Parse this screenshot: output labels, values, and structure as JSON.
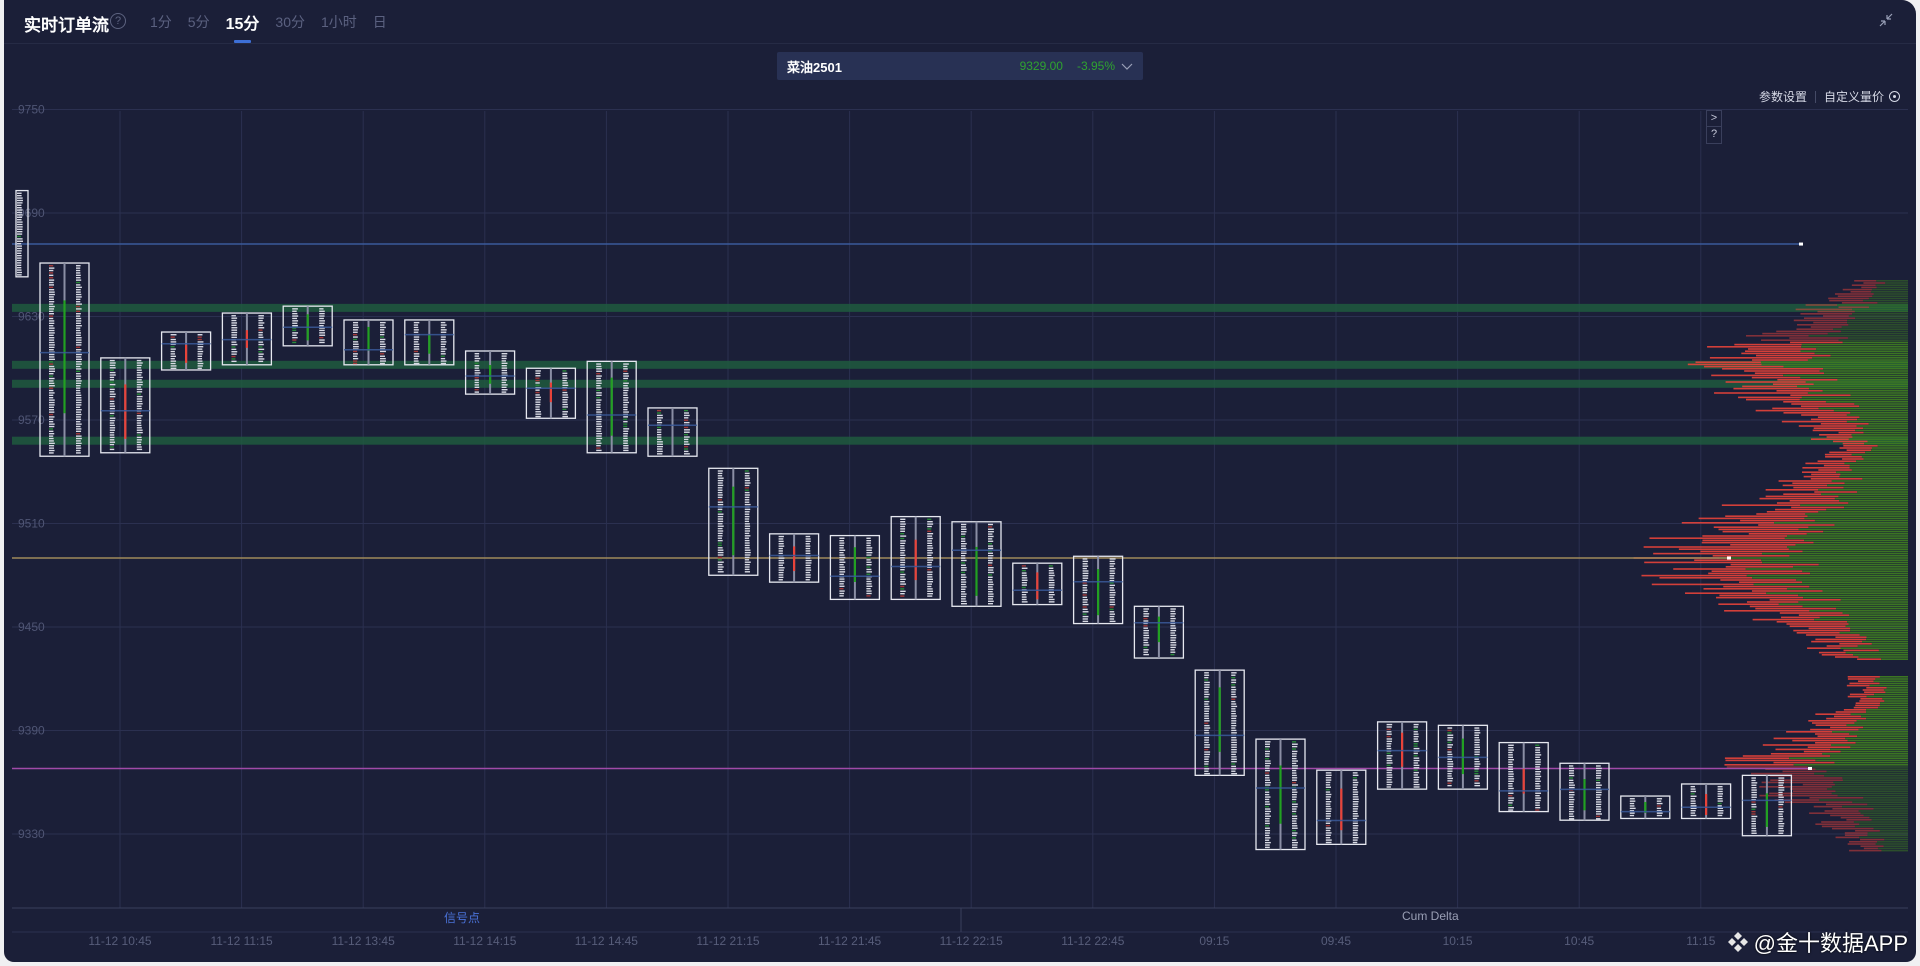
{
  "header": {
    "title": "实时订单流",
    "help_icon": "question-circle-icon",
    "tabs": [
      {
        "label": "1分",
        "active": false
      },
      {
        "label": "5分",
        "active": false
      },
      {
        "label": "15分",
        "active": true
      },
      {
        "label": "30分",
        "active": false
      },
      {
        "label": "1小时",
        "active": false
      },
      {
        "label": "日",
        "active": false
      }
    ],
    "shrink_icon": "collapse-arrows-icon"
  },
  "ticker": {
    "name": "菜油2501",
    "price": "9329.00",
    "change": "-3.95%",
    "price_color": "#2fa32f"
  },
  "settings": {
    "params_label": "参数设置",
    "custom_label": "自定义量价"
  },
  "side_buttons": [
    ">",
    "?"
  ],
  "lower_panels": {
    "signal_label": "信号点",
    "cum_delta_label": "Cum Delta"
  },
  "watermark": "@金十数据APP",
  "colors": {
    "background": "#1b1f38",
    "grid": "#2b3050",
    "up": "#22a022",
    "down": "#e8433a",
    "poc_line_gold": "#a08a5a",
    "poc_line_purple": "#a04aa8",
    "poc_line_blue": "#3a5a9a",
    "band_green": "#1f5a3e"
  },
  "chart_data": {
    "type": "footprint-candlestick",
    "title": "菜油2501 15分 订单流",
    "y_ticks": [
      9750,
      9690,
      9630,
      9570,
      9510,
      9450,
      9390,
      9330
    ],
    "ylim": [
      9285,
      9750
    ],
    "x_ticks": [
      "11-12 10:45",
      "11-12 11:15",
      "11-12 13:45",
      "11-12 14:15",
      "11-12 14:45",
      "11-12 21:15",
      "11-12 21:45",
      "11-12 22:15",
      "11-12 22:45",
      "09:15",
      "09:45",
      "10:15",
      "10:45",
      "11:15"
    ],
    "horizontal_levels": [
      {
        "price": 9672,
        "label": "blue",
        "color": "#3a5a9a"
      },
      {
        "price": 9490,
        "label": "gold",
        "color": "#a08a5a"
      },
      {
        "price": 9368,
        "label": "purple",
        "color": "#a04aa8"
      }
    ],
    "green_bands": [
      9635,
      9602,
      9591,
      9558
    ],
    "candles": [
      {
        "high": 9703,
        "low": 9653,
        "dir": "flat"
      },
      {
        "high": 9661,
        "low": 9549,
        "dir": "up"
      },
      {
        "high": 9606,
        "low": 9551,
        "dir": "down"
      },
      {
        "high": 9621,
        "low": 9599,
        "dir": "down"
      },
      {
        "high": 9632,
        "low": 9602,
        "dir": "down"
      },
      {
        "high": 9636,
        "low": 9613,
        "dir": "up"
      },
      {
        "high": 9628,
        "low": 9602,
        "dir": "up"
      },
      {
        "high": 9628,
        "low": 9602,
        "dir": "up"
      },
      {
        "high": 9610,
        "low": 9585,
        "dir": "up"
      },
      {
        "high": 9600,
        "low": 9571,
        "dir": "down"
      },
      {
        "high": 9604,
        "low": 9551,
        "dir": "up"
      },
      {
        "high": 9577,
        "low": 9549,
        "dir": "flat"
      },
      {
        "high": 9542,
        "low": 9480,
        "dir": "up"
      },
      {
        "high": 9504,
        "low": 9476,
        "dir": "down"
      },
      {
        "high": 9503,
        "low": 9466,
        "dir": "up"
      },
      {
        "high": 9514,
        "low": 9466,
        "dir": "down"
      },
      {
        "high": 9511,
        "low": 9462,
        "dir": "up"
      },
      {
        "high": 9487,
        "low": 9463,
        "dir": "down"
      },
      {
        "high": 9491,
        "low": 9452,
        "dir": "up"
      },
      {
        "high": 9462,
        "low": 9432,
        "dir": "up"
      },
      {
        "high": 9425,
        "low": 9364,
        "dir": "up"
      },
      {
        "high": 9385,
        "low": 9321,
        "dir": "up"
      },
      {
        "high": 9367,
        "low": 9324,
        "dir": "down"
      },
      {
        "high": 9395,
        "low": 9356,
        "dir": "down"
      },
      {
        "high": 9393,
        "low": 9356,
        "dir": "up"
      },
      {
        "high": 9383,
        "low": 9343,
        "dir": "down"
      },
      {
        "high": 9371,
        "low": 9338,
        "dir": "up"
      },
      {
        "high": 9352,
        "low": 9339,
        "dir": "up"
      },
      {
        "high": 9359,
        "low": 9339,
        "dir": "down"
      },
      {
        "high": 9364,
        "low": 9329,
        "dir": "up"
      }
    ],
    "legend": [],
    "grid": true
  }
}
